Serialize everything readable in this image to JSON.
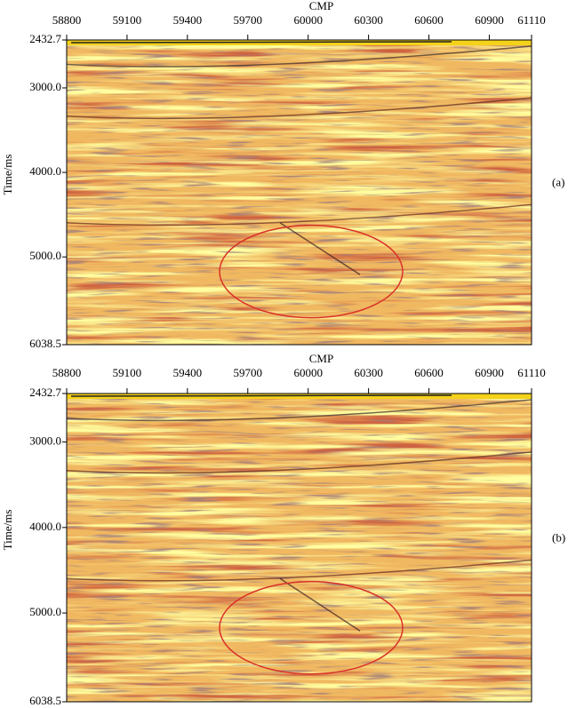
{
  "chart_data": [
    {
      "type": "seismic",
      "panel_label": "(a)",
      "xlabel": "CMP",
      "ylabel": "Time/ms",
      "xlim": [
        58800,
        61110
      ],
      "xticks": [
        58800,
        59100,
        59400,
        59700,
        60000,
        60300,
        60600,
        60900,
        61110
      ],
      "ylim": [
        2432.7,
        6038.5
      ],
      "y_inverted": true,
      "yticks": [
        2432.7,
        {
          "value": 3000,
          "label": "3000.0"
        },
        {
          "value": 4000,
          "label": "4000.0"
        },
        {
          "value": 5000,
          "label": "5000.0"
        },
        6038.5
      ],
      "annotation_color": "#d9302a"
    },
    {
      "type": "seismic",
      "panel_label": "(b)",
      "xlabel": "CMP",
      "ylabel": "Time/ms",
      "xlim": [
        58800,
        61110
      ],
      "xticks": [
        58800,
        59100,
        59400,
        59700,
        60000,
        60300,
        60600,
        60900,
        61110
      ],
      "ylim": [
        2432.7,
        6038.5
      ],
      "y_inverted": true,
      "yticks": [
        2432.7,
        {
          "value": 3000,
          "label": "3000.0"
        },
        {
          "value": 4000,
          "label": "4000.0"
        },
        {
          "value": 5000,
          "label": "5000.0"
        },
        6038.5
      ],
      "annotation_color": "#d9302a"
    }
  ]
}
